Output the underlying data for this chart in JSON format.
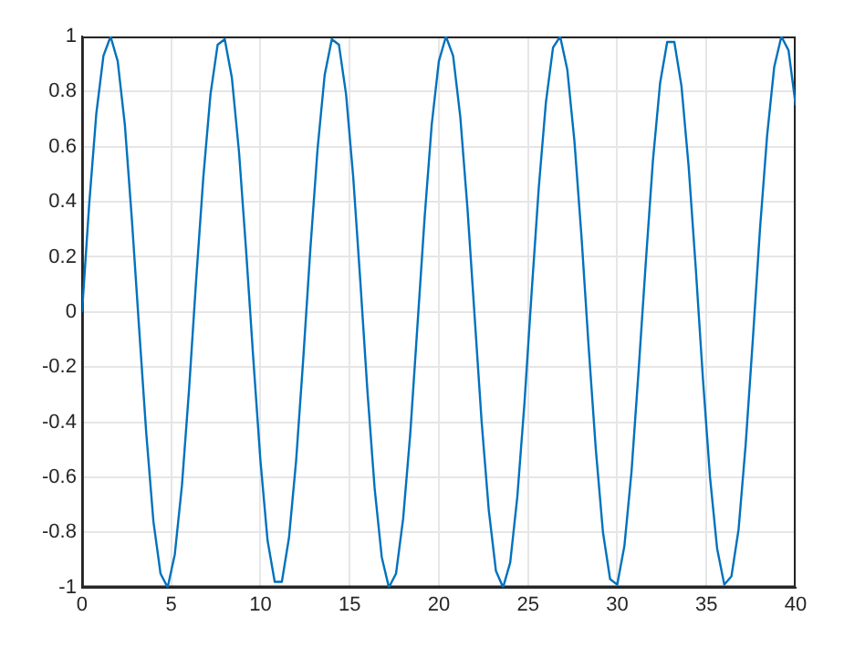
{
  "chart_data": {
    "type": "line",
    "x": [
      0,
      0.4,
      0.8,
      1.2,
      1.6,
      2,
      2.4,
      2.8,
      3.2,
      3.6,
      4,
      4.4,
      4.8,
      5.2,
      5.6,
      6,
      6.4,
      6.8,
      7.2,
      7.6,
      8,
      8.4,
      8.8,
      9.2,
      9.6,
      10,
      10.4,
      10.8,
      11.2,
      11.6,
      12,
      12.4,
      12.8,
      13.2,
      13.6,
      14,
      14.4,
      14.8,
      15.2,
      15.6,
      16,
      16.4,
      16.8,
      17.2,
      17.6,
      18,
      18.4,
      18.8,
      19.2,
      19.6,
      20,
      20.4,
      20.8,
      21.2,
      21.6,
      22,
      22.4,
      22.8,
      23.2,
      23.6,
      24,
      24.4,
      24.8,
      25.2,
      25.6,
      26,
      26.4,
      26.8,
      27.2,
      27.6,
      28,
      28.4,
      28.8,
      29.2,
      29.6,
      30,
      30.4,
      30.8,
      31.2,
      31.6,
      32,
      32.4,
      32.8,
      33.2,
      33.6,
      34,
      34.4,
      34.8,
      35.2,
      35.6,
      36,
      36.4,
      36.8,
      37.2,
      37.6,
      38,
      38.4,
      38.8,
      39.2,
      39.6,
      40
    ],
    "series": [
      {
        "color": "#0072bd",
        "values": [
          0,
          0.39,
          0.72,
          0.93,
          1.0,
          0.91,
          0.68,
          0.33,
          -0.06,
          -0.44,
          -0.76,
          -0.95,
          -1.0,
          -0.88,
          -0.63,
          -0.28,
          0.12,
          0.49,
          0.79,
          0.97,
          0.99,
          0.85,
          0.58,
          0.22,
          -0.17,
          -0.54,
          -0.83,
          -0.98,
          -0.98,
          -0.82,
          -0.54,
          -0.17,
          0.23,
          0.59,
          0.86,
          0.99,
          0.97,
          0.79,
          0.49,
          0.11,
          -0.29,
          -0.64,
          -0.89,
          -1.0,
          -0.95,
          -0.75,
          -0.44,
          -0.05,
          0.34,
          0.68,
          0.91,
          1.0,
          0.93,
          0.71,
          0.38,
          -0.01,
          -0.4,
          -0.72,
          -0.94,
          -1.0,
          -0.91,
          -0.67,
          -0.33,
          0.07,
          0.45,
          0.76,
          0.96,
          1.0,
          0.88,
          0.62,
          0.27,
          -0.13,
          -0.5,
          -0.8,
          -0.97,
          -0.99,
          -0.85,
          -0.58,
          -0.21,
          0.18,
          0.55,
          0.83,
          0.98,
          0.98,
          0.82,
          0.53,
          0.16,
          -0.24,
          -0.6,
          -0.86,
          -0.99,
          -0.96,
          -0.79,
          -0.48,
          -0.1,
          0.3,
          0.64,
          0.89,
          1.0,
          0.95,
          0.75
        ]
      }
    ],
    "xlim": [
      0,
      40
    ],
    "xticks": [
      0,
      5,
      10,
      15,
      20,
      25,
      30,
      35,
      40
    ],
    "ylim": [
      -1,
      1
    ],
    "yticks": [
      -1,
      -0.8,
      -0.6,
      -0.4,
      -0.2,
      0,
      0.2,
      0.4,
      0.6,
      0.8,
      1
    ],
    "grid": true,
    "marker": "none",
    "line_style": "solid",
    "legend": false
  }
}
